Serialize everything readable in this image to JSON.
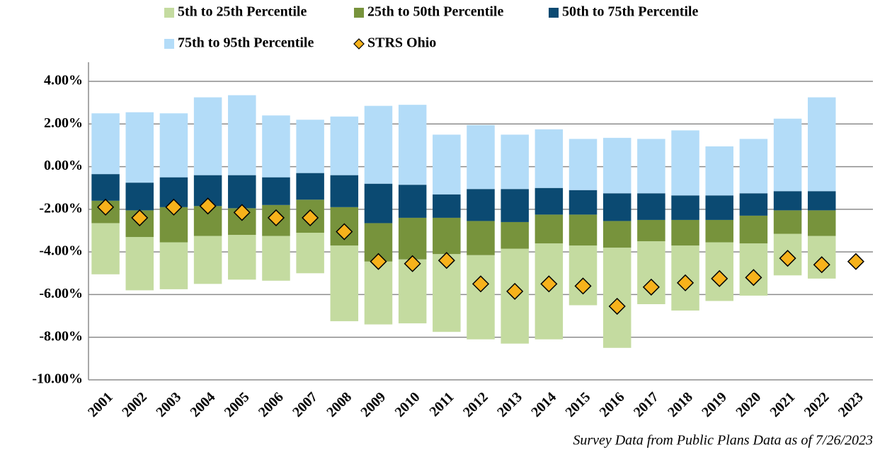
{
  "chart_data": {
    "type": "range_bar",
    "categories": [
      "2001",
      "2002",
      "2003",
      "2004",
      "2005",
      "2006",
      "2007",
      "2008",
      "2009",
      "2010",
      "2011",
      "2012",
      "2013",
      "2014",
      "2015",
      "2016",
      "2017",
      "2018",
      "2019",
      "2020",
      "2021",
      "2022",
      "2023"
    ],
    "series": [
      {
        "name": "5th to 25th Percentile",
        "color": "#c4dba0",
        "values": [
          [
            -5.05,
            -2.65
          ],
          [
            -5.8,
            -3.3
          ],
          [
            -5.75,
            -3.55
          ],
          [
            -5.5,
            -3.25
          ],
          [
            -5.3,
            -3.2
          ],
          [
            -5.35,
            -3.25
          ],
          [
            -5.0,
            -3.1
          ],
          [
            -7.25,
            -3.7
          ],
          [
            -7.4,
            -4.45
          ],
          [
            -7.35,
            -4.35
          ],
          [
            -7.75,
            -4.1
          ],
          [
            -8.1,
            -4.15
          ],
          [
            -8.3,
            -3.85
          ],
          [
            -8.1,
            -3.6
          ],
          [
            -6.5,
            -3.7
          ],
          [
            -8.5,
            -3.8
          ],
          [
            -6.45,
            -3.5
          ],
          [
            -6.75,
            -3.7
          ],
          [
            -6.3,
            -3.55
          ],
          [
            -6.05,
            -3.6
          ],
          [
            -5.1,
            -3.15
          ],
          [
            -5.25,
            -3.25
          ],
          null
        ]
      },
      {
        "name": "25th to 50th Percentile",
        "color": "#77933c",
        "values": [
          [
            -2.65,
            -1.6
          ],
          [
            -3.3,
            -2.05
          ],
          [
            -3.55,
            -1.9
          ],
          [
            -3.25,
            -1.85
          ],
          [
            -3.2,
            -1.95
          ],
          [
            -3.25,
            -1.8
          ],
          [
            -3.1,
            -1.55
          ],
          [
            -3.7,
            -1.9
          ],
          [
            -4.45,
            -2.65
          ],
          [
            -4.35,
            -2.4
          ],
          [
            -4.1,
            -2.4
          ],
          [
            -4.15,
            -2.55
          ],
          [
            -3.85,
            -2.6
          ],
          [
            -3.6,
            -2.25
          ],
          [
            -3.7,
            -2.25
          ],
          [
            -3.8,
            -2.55
          ],
          [
            -3.5,
            -2.5
          ],
          [
            -3.7,
            -2.5
          ],
          [
            -3.55,
            -2.5
          ],
          [
            -3.6,
            -2.3
          ],
          [
            -3.15,
            -2.05
          ],
          [
            -3.25,
            -2.05
          ],
          null
        ]
      },
      {
        "name": "50th to 75th Percentile",
        "color": "#0b4a72",
        "values": [
          [
            -1.6,
            -0.35
          ],
          [
            -2.05,
            -0.75
          ],
          [
            -1.9,
            -0.5
          ],
          [
            -1.85,
            -0.4
          ],
          [
            -1.95,
            -0.4
          ],
          [
            -1.8,
            -0.5
          ],
          [
            -1.55,
            -0.3
          ],
          [
            -1.9,
            -0.4
          ],
          [
            -2.65,
            -0.8
          ],
          [
            -2.4,
            -0.85
          ],
          [
            -2.4,
            -1.3
          ],
          [
            -2.55,
            -1.05
          ],
          [
            -2.6,
            -1.05
          ],
          [
            -2.25,
            -1.0
          ],
          [
            -2.25,
            -1.1
          ],
          [
            -2.55,
            -1.25
          ],
          [
            -2.5,
            -1.25
          ],
          [
            -2.5,
            -1.35
          ],
          [
            -2.5,
            -1.35
          ],
          [
            -2.3,
            -1.25
          ],
          [
            -2.05,
            -1.15
          ],
          [
            -2.05,
            -1.15
          ],
          null
        ]
      },
      {
        "name": "75th to 95th Percentile",
        "color": "#b3dcf8",
        "values": [
          [
            -0.35,
            2.5
          ],
          [
            -0.75,
            2.55
          ],
          [
            -0.5,
            2.5
          ],
          [
            -0.4,
            3.25
          ],
          [
            -0.4,
            3.35
          ],
          [
            -0.5,
            2.4
          ],
          [
            -0.3,
            2.2
          ],
          [
            -0.4,
            2.35
          ],
          [
            -0.8,
            2.85
          ],
          [
            -0.85,
            2.9
          ],
          [
            -1.3,
            1.5
          ],
          [
            -1.05,
            1.95
          ],
          [
            -1.05,
            1.5
          ],
          [
            -1.0,
            1.75
          ],
          [
            -1.1,
            1.3
          ],
          [
            -1.25,
            1.35
          ],
          [
            -1.25,
            1.3
          ],
          [
            -1.35,
            1.7
          ],
          [
            -1.35,
            0.95
          ],
          [
            -1.25,
            1.3
          ],
          [
            -1.15,
            2.25
          ],
          [
            -1.15,
            3.25
          ],
          null
        ]
      },
      {
        "name": "STRS Ohio",
        "color": "#f7b21b",
        "marker": "diamond",
        "values": [
          -1.9,
          -2.4,
          -1.9,
          -1.85,
          -2.15,
          -2.4,
          -2.4,
          -3.05,
          -4.45,
          -4.55,
          -4.4,
          -5.5,
          -5.85,
          -5.5,
          -5.6,
          -6.55,
          -5.65,
          -5.45,
          -5.25,
          -5.2,
          -4.3,
          -4.6,
          -4.45
        ]
      }
    ],
    "ylim": [
      -10,
      4
    ],
    "yticks": [
      {
        "value": -10,
        "label": "-10.00%"
      },
      {
        "value": -8,
        "label": "-8.00%"
      },
      {
        "value": -6,
        "label": "-6.00%"
      },
      {
        "value": -4,
        "label": "-4.00%"
      },
      {
        "value": -2,
        "label": "-2.00%"
      },
      {
        "value": 0,
        "label": "0.00%"
      },
      {
        "value": 2,
        "label": "2.00%"
      },
      {
        "value": 4,
        "label": "4.00%"
      }
    ],
    "grid": true,
    "note": "Survey Data from Public Plans Data as of 7/26/2023"
  }
}
